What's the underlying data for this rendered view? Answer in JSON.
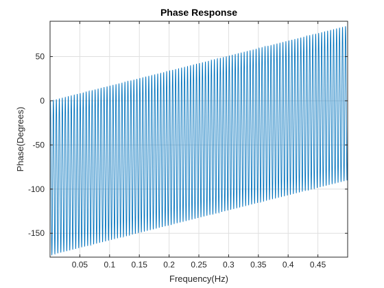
{
  "chart_data": {
    "type": "line",
    "title": "Phase Response",
    "xlabel": "Frequency(Hz)",
    "ylabel": "Phase(Degrees)",
    "xlim": [
      0,
      0.5
    ],
    "ylim": [
      -177,
      90
    ],
    "xticks": [
      0.05,
      0.1,
      0.15,
      0.2,
      0.25,
      0.3,
      0.35,
      0.4,
      0.45
    ],
    "xtick_labels": [
      "0.05",
      "0.1",
      "0.15",
      "0.2",
      "0.25",
      "0.3",
      "0.35",
      "0.4",
      "0.45"
    ],
    "yticks": [
      50,
      0,
      -50,
      -100,
      -150
    ],
    "ytick_labels": [
      "50",
      "0",
      "-50",
      "-100",
      "-150"
    ],
    "grid": true,
    "series": [
      {
        "color": "#0072BD",
        "description_values": {
          "cycles": 100,
          "phase_start": -20,
          "upper_envelope": [
            [
              0,
              0
            ],
            [
              0.5,
              85
            ]
          ],
          "lower_envelope": [
            [
              0,
              -175
            ],
            [
              0.5,
              -90
            ]
          ]
        }
      }
    ]
  }
}
